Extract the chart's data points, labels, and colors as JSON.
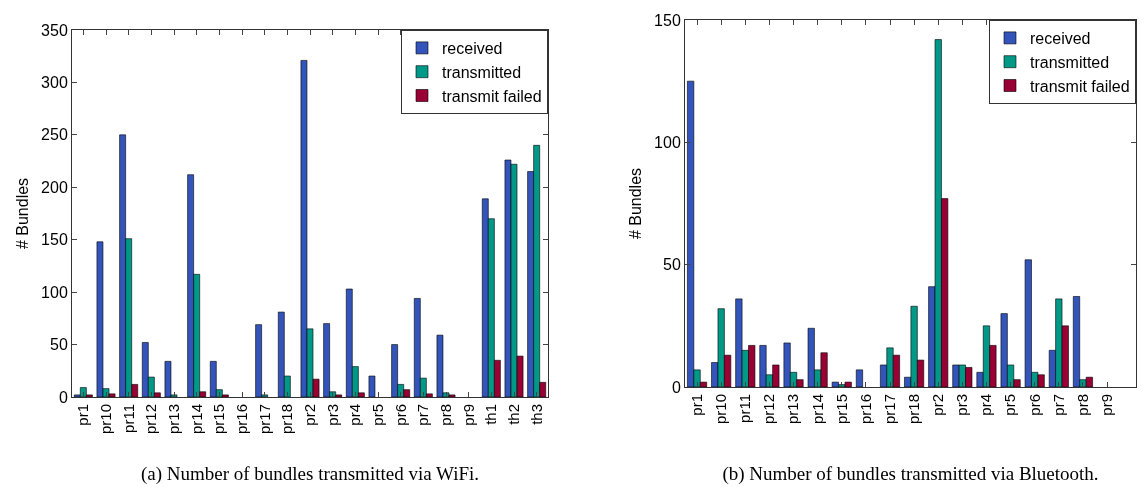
{
  "chart_data": [
    {
      "type": "bar",
      "title": "(a) Number of bundles transmitted via WiFi.",
      "ylabel": "# Bundles",
      "categories": [
        "pr1",
        "pr10",
        "pr11",
        "pr12",
        "pr13",
        "pr14",
        "pr15",
        "pr16",
        "pr17",
        "pr18",
        "pr2",
        "pr3",
        "pr4",
        "pr5",
        "pr6",
        "pr7",
        "pr8",
        "pr9",
        "th1",
        "th2",
        "th3"
      ],
      "series": [
        {
          "name": "received",
          "color": "#3355bb",
          "values": [
            2,
            148,
            250,
            52,
            34,
            212,
            34,
            0,
            69,
            81,
            321,
            70,
            103,
            20,
            50,
            94,
            59,
            0,
            189,
            226,
            215
          ]
        },
        {
          "name": "transmitted",
          "color": "#009988",
          "values": [
            9,
            8,
            151,
            19,
            2,
            117,
            7,
            0,
            2,
            20,
            65,
            5,
            29,
            0,
            12,
            18,
            4,
            0,
            170,
            222,
            240
          ]
        },
        {
          "name": "transmit failed",
          "color": "#990033",
          "values": [
            2,
            3,
            12,
            4,
            0,
            5,
            2,
            0,
            0,
            0,
            17,
            2,
            4,
            0,
            7,
            3,
            2,
            0,
            35,
            39,
            14
          ]
        }
      ],
      "ylim": [
        0,
        350
      ],
      "yticks": [
        0,
        50,
        100,
        150,
        200,
        250,
        300,
        350
      ],
      "grid": false,
      "legend": "top right"
    },
    {
      "type": "bar",
      "title": "(b) Number of bundles transmitted via Bluetooth.",
      "ylabel": "# Bundles",
      "categories": [
        "pr1",
        "pr10",
        "pr11",
        "pr12",
        "pr13",
        "pr14",
        "pr15",
        "pr16",
        "pr17",
        "pr18",
        "pr2",
        "pr3",
        "pr4",
        "pr5",
        "pr6",
        "pr7",
        "pr8",
        "pr9"
      ],
      "series": [
        {
          "name": "received",
          "color": "#3355bb",
          "values": [
            125,
            10,
            36,
            17,
            18,
            24,
            2,
            7,
            9,
            4,
            41,
            9,
            6,
            30,
            52,
            15,
            37,
            0
          ]
        },
        {
          "name": "transmitted",
          "color": "#009988",
          "values": [
            7,
            32,
            15,
            5,
            6,
            7,
            1,
            0,
            16,
            33,
            142,
            9,
            25,
            9,
            6,
            36,
            3,
            0
          ]
        },
        {
          "name": "transmit failed",
          "color": "#990033",
          "values": [
            2,
            13,
            17,
            9,
            3,
            14,
            2,
            0,
            13,
            11,
            77,
            8,
            17,
            3,
            5,
            25,
            4,
            0
          ]
        }
      ],
      "ylim": [
        0,
        150
      ],
      "yticks": [
        0,
        50,
        100,
        150
      ],
      "grid": false,
      "legend": "top right"
    }
  ]
}
